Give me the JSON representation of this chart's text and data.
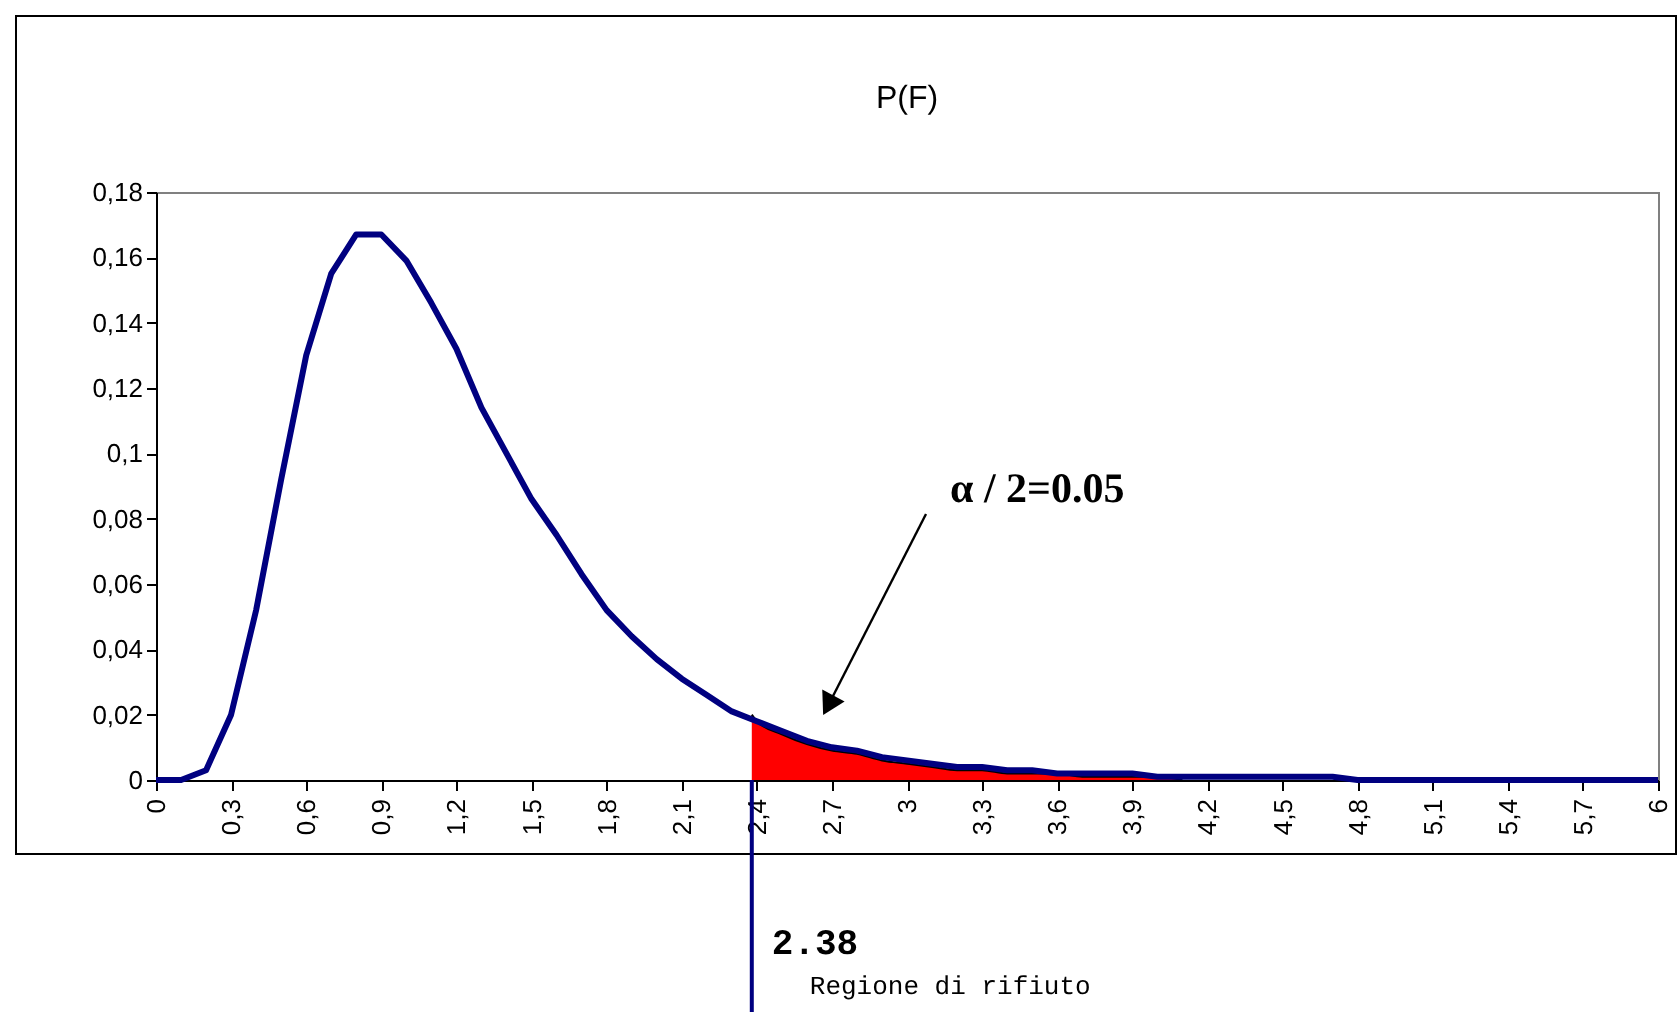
{
  "chart_data": {
    "type": "line",
    "title": "P(F)",
    "x": [
      0,
      0.1,
      0.2,
      0.3,
      0.4,
      0.5,
      0.6,
      0.7,
      0.8,
      0.9,
      1,
      1.1,
      1.2,
      1.3,
      1.4,
      1.5,
      1.6,
      1.7,
      1.8,
      1.9,
      2,
      2.1,
      2.2,
      2.3,
      2.4,
      2.5,
      2.6,
      2.7,
      2.8,
      2.9,
      3,
      3.1,
      3.2,
      3.3,
      3.4,
      3.5,
      3.6,
      3.7,
      3.8,
      3.9,
      4,
      4.1,
      4.2,
      4.3,
      4.4,
      4.5,
      4.6,
      4.7,
      4.8,
      4.9,
      5,
      5.1,
      5.2,
      5.3,
      5.4,
      5.5,
      5.6,
      5.7,
      5.8,
      5.9,
      6
    ],
    "series": [
      {
        "color": "#000080",
        "values": [
          0,
          0,
          0.003,
          0.02,
          0.052,
          0.092,
          0.13,
          0.155,
          0.167,
          0.167,
          0.159,
          0.146,
          0.132,
          0.114,
          0.1,
          0.086,
          0.075,
          0.063,
          0.052,
          0.044,
          0.037,
          0.031,
          0.026,
          0.021,
          0.018,
          0.015,
          0.012,
          0.01,
          0.009,
          0.007,
          0.006,
          0.005,
          0.004,
          0.004,
          0.003,
          0.003,
          0.002,
          0.002,
          0.002,
          0.002,
          0.001,
          0.001,
          0.001,
          0.001,
          0.001,
          0.001,
          0.001,
          0.001,
          0,
          0,
          0,
          0,
          0,
          0,
          0,
          0,
          0,
          0,
          0,
          0,
          0
        ]
      },
      {
        "type": "area",
        "color": "#ff0000",
        "x": [
          2.38,
          2.4,
          2.5,
          2.6,
          2.7,
          2.8,
          2.9,
          3,
          3.1,
          3.2,
          3.3,
          3.4,
          3.5,
          3.6,
          3.7,
          3.8,
          3.9,
          4,
          4.1
        ],
        "values": [
          0.02,
          0.018,
          0.014,
          0.011,
          0.009,
          0.008,
          0.006,
          0.005,
          0.004,
          0.003,
          0.003,
          0.002,
          0.002,
          0.002,
          0.001,
          0.001,
          0.001,
          0.001,
          0
        ]
      }
    ],
    "xlim": [
      0,
      6
    ],
    "xticks": [
      0,
      {
        "value": 0.3,
        "label": "0,3"
      },
      {
        "value": 0.6,
        "label": "0,6"
      },
      {
        "value": 0.9,
        "label": "0,9"
      },
      {
        "value": 1.2,
        "label": "1,2"
      },
      {
        "value": 1.5,
        "label": "1,5"
      },
      {
        "value": 1.8,
        "label": "1,8"
      },
      {
        "value": 2.1,
        "label": "2,1"
      },
      {
        "value": 2.4,
        "label": "2,4"
      },
      {
        "value": 2.7,
        "label": "2,7"
      },
      3,
      {
        "value": 3.3,
        "label": "3,3"
      },
      {
        "value": 3.6,
        "label": "3,6"
      },
      {
        "value": 3.9,
        "label": "3,9"
      },
      {
        "value": 4.2,
        "label": "4,2"
      },
      {
        "value": 4.5,
        "label": "4,5"
      },
      {
        "value": 4.8,
        "label": "4,8"
      },
      {
        "value": 5.1,
        "label": "5,1"
      },
      {
        "value": 5.4,
        "label": "5,4"
      },
      {
        "value": 5.7,
        "label": "5,7"
      },
      6
    ],
    "ylim": [
      0,
      0.18
    ],
    "yticks": [
      0,
      {
        "value": 0.02,
        "label": "0,02"
      },
      {
        "value": 0.04,
        "label": "0,04"
      },
      {
        "value": 0.06,
        "label": "0,06"
      },
      {
        "value": 0.08,
        "label": "0,08"
      },
      {
        "value": 0.1,
        "label": "0,1"
      },
      {
        "value": 0.12,
        "label": "0,12"
      },
      {
        "value": 0.14,
        "label": "0,14"
      },
      {
        "value": 0.16,
        "label": "0,16"
      },
      {
        "value": 0.18,
        "label": "0,18"
      }
    ],
    "ref_lines": [
      {
        "axis": "x",
        "value": 2.38,
        "label": "2.38",
        "color": "#000080"
      }
    ],
    "annotations": [
      "α / 2=0.05",
      "Regione di rifiuto"
    ],
    "grid": false,
    "marker": "none",
    "line_style": "solid"
  }
}
